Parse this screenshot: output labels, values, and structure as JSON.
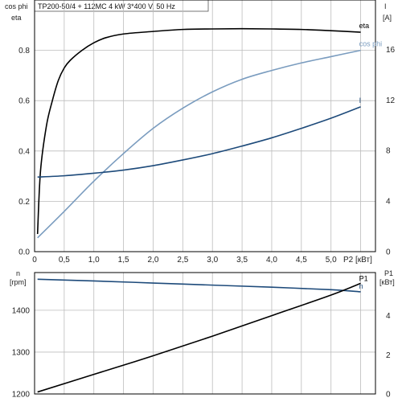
{
  "title": "TP200-50/4 + 112MC  4 kW  3*400 V, 50 Hz",
  "colors": {
    "eta": "#000000",
    "cos_phi": "#7a9cbf",
    "current": "#1d4a7a",
    "speed": "#1d4a7a",
    "power": "#000000",
    "grid": "#bcbcbc",
    "axis": "#000000"
  },
  "chart_data": [
    {
      "type": "line",
      "x_label": "P2 [кВт]",
      "x_ticks": [
        "0",
        "0,5",
        "1,0",
        "1,5",
        "2,0",
        "2,5",
        "3,0",
        "3,5",
        "4,0",
        "4,5",
        "5,0"
      ],
      "x_range": [
        0,
        5.75
      ],
      "left_axis_label": [
        "cos phi",
        "eta"
      ],
      "left_ticks": [
        "0.0",
        "0.2",
        "0.4",
        "0.6",
        "0.8"
      ],
      "left_range": [
        0,
        1.0
      ],
      "right_axis_label": [
        "I",
        "[A]"
      ],
      "right_ticks": [
        "0",
        "4",
        "8",
        "12",
        "16"
      ],
      "right_range": [
        0,
        19.9
      ],
      "grid": true,
      "series": [
        {
          "name": "eta",
          "axis": "left",
          "x": [
            0.05,
            0.1,
            0.2,
            0.3,
            0.4,
            0.5,
            0.6,
            0.8,
            1.0,
            1.2,
            1.5,
            2.0,
            2.5,
            3.0,
            3.5,
            4.0,
            4.5,
            5.0,
            5.5
          ],
          "y": [
            0.07,
            0.32,
            0.5,
            0.6,
            0.68,
            0.73,
            0.76,
            0.8,
            0.83,
            0.85,
            0.865,
            0.875,
            0.883,
            0.885,
            0.886,
            0.885,
            0.883,
            0.878,
            0.872
          ]
        },
        {
          "name": "cos phi",
          "axis": "left",
          "x": [
            0.05,
            0.5,
            1.0,
            1.5,
            2.0,
            2.5,
            3.0,
            3.5,
            4.0,
            4.5,
            5.0,
            5.5
          ],
          "y": [
            0.055,
            0.16,
            0.28,
            0.39,
            0.49,
            0.57,
            0.635,
            0.685,
            0.72,
            0.75,
            0.775,
            0.8
          ]
        },
        {
          "name": "I",
          "axis": "right",
          "x": [
            0.05,
            0.5,
            1.0,
            1.5,
            2.0,
            2.5,
            3.0,
            3.5,
            4.0,
            4.5,
            5.0,
            5.5
          ],
          "y": [
            5.9,
            6.0,
            6.2,
            6.45,
            6.8,
            7.25,
            7.75,
            8.35,
            9.0,
            9.75,
            10.55,
            11.45
          ]
        }
      ]
    },
    {
      "type": "line",
      "x_range": [
        0,
        5.75
      ],
      "left_axis_label": [
        "n",
        "[rpm]"
      ],
      "left_ticks": [
        "1200",
        "1300",
        "1400"
      ],
      "left_range": [
        1200,
        1490
      ],
      "right_axis_label": [
        "P1",
        "[кВт]"
      ],
      "right_ticks": [
        "0",
        "2",
        "4"
      ],
      "right_range": [
        0,
        6.2
      ],
      "grid": true,
      "series": [
        {
          "name": "n",
          "axis": "left",
          "x": [
            0.05,
            1.0,
            2.0,
            3.0,
            4.0,
            5.0,
            5.5
          ],
          "y": [
            1474,
            1470,
            1465,
            1460,
            1455,
            1449,
            1444
          ]
        },
        {
          "name": "P1",
          "axis": "right",
          "x": [
            0.05,
            1.0,
            2.0,
            3.0,
            4.0,
            5.0,
            5.5
          ],
          "y": [
            0.1,
            1.0,
            1.95,
            2.95,
            4.0,
            5.05,
            5.65
          ]
        }
      ]
    }
  ]
}
